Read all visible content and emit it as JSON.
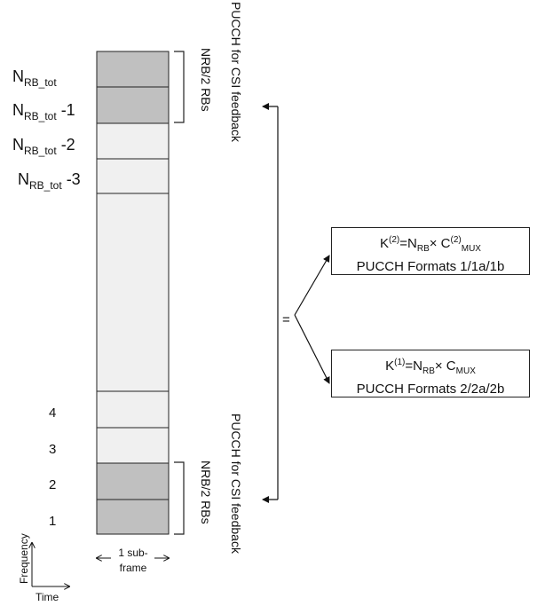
{
  "rows_top": [
    {
      "main": "N",
      "sub": "RB_tot",
      "suffix": ""
    },
    {
      "main": "N",
      "sub": "RB_tot",
      "suffix": " -1"
    },
    {
      "main": "N",
      "sub": "RB_tot",
      "suffix": " -2"
    },
    {
      "main": "N",
      "sub": "RB_tot",
      "suffix": " -3"
    }
  ],
  "rows_bottom": [
    "4",
    "3",
    "2",
    "1"
  ],
  "bracket_top": "NRB/2 RBs",
  "bracket_bottom": "NRB/2 RBs",
  "pucch_top": "PUCCH for CSI feedback",
  "pucch_bottom": "PUCCH for CSI feedback",
  "equals": "=",
  "box1": {
    "k": "K",
    "k_sup": "(2)",
    "eq": "=N",
    "n_sub": "RB",
    "times": "× C",
    "c_sup": "(2)",
    "c_sub": "MUX",
    "line2": "PUCCH Formats 1/1a/1b"
  },
  "box2": {
    "k": "K",
    "k_sup": "(1)",
    "eq": "=N",
    "n_sub": "RB",
    "times": "× C",
    "c_sub": "MUX",
    "line2": "PUCCH Formats 2/2a/2b"
  },
  "subframe": {
    "line1": "1 sub-",
    "line2": "frame"
  },
  "axes": {
    "frequency": "Frequency",
    "time": "Time"
  },
  "colors": {
    "dark_cell": "#c0c0c0",
    "light_cell": "#f0f0f0",
    "stroke": "#222222"
  }
}
